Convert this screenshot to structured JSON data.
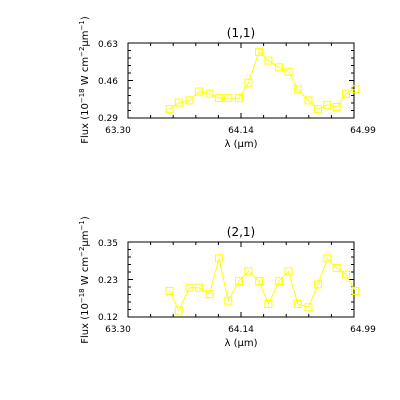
{
  "figure": {
    "ylabel_prefix": "Flux (10",
    "ylabel_exp1": "−18",
    "ylabel_mid": " W cm",
    "ylabel_exp2": "−2",
    "ylabel_mu": "μm",
    "ylabel_exp3": "−1",
    "ylabel_suffix": ")",
    "xlabel_prefix": "λ (",
    "xlabel_mu": "μm",
    "xlabel_suffix": ")"
  },
  "chart_data": [
    {
      "type": "line",
      "title": "(1,1)",
      "marker": "square",
      "color": "#ffff00",
      "xlim": [
        63.3,
        64.99
      ],
      "ylim": [
        0.29,
        0.63
      ],
      "xticks": [
        "63.30",
        "64.14",
        "64.99"
      ],
      "yticks": [
        "0.29",
        "0.46",
        "0.63"
      ],
      "x": [
        63.61,
        63.68,
        63.76,
        63.83,
        63.91,
        63.98,
        64.05,
        64.13,
        64.2,
        64.28,
        64.35,
        64.43,
        64.5,
        64.57,
        64.65,
        64.72,
        64.79,
        64.86,
        64.93
      ],
      "y": [
        0.33,
        0.36,
        0.37,
        0.41,
        0.4,
        0.38,
        0.38,
        0.38,
        0.45,
        0.59,
        0.55,
        0.52,
        0.5,
        0.42,
        0.37,
        0.33,
        0.35,
        0.34,
        0.4
      ],
      "y_extra": 0.42
    },
    {
      "type": "line",
      "title": "(2,1)",
      "marker": "square",
      "color": "#ffff00",
      "xlim": [
        63.3,
        64.99
      ],
      "ylim": [
        0.12,
        0.35
      ],
      "xticks": [
        "63.30",
        "64.14",
        "64.99"
      ],
      "yticks": [
        "0.12",
        "0.23",
        "0.35"
      ],
      "x": [
        63.61,
        63.68,
        63.76,
        63.83,
        63.91,
        63.98,
        64.05,
        64.13,
        64.2,
        64.28,
        64.35,
        64.43,
        64.5,
        64.57,
        64.65,
        64.72,
        64.79,
        64.86,
        64.93
      ],
      "y": [
        0.2,
        0.14,
        0.21,
        0.21,
        0.19,
        0.3,
        0.17,
        0.23,
        0.26,
        0.23,
        0.16,
        0.23,
        0.26,
        0.16,
        0.15,
        0.22,
        0.3,
        0.27,
        0.25
      ],
      "y_extra": 0.2
    }
  ]
}
